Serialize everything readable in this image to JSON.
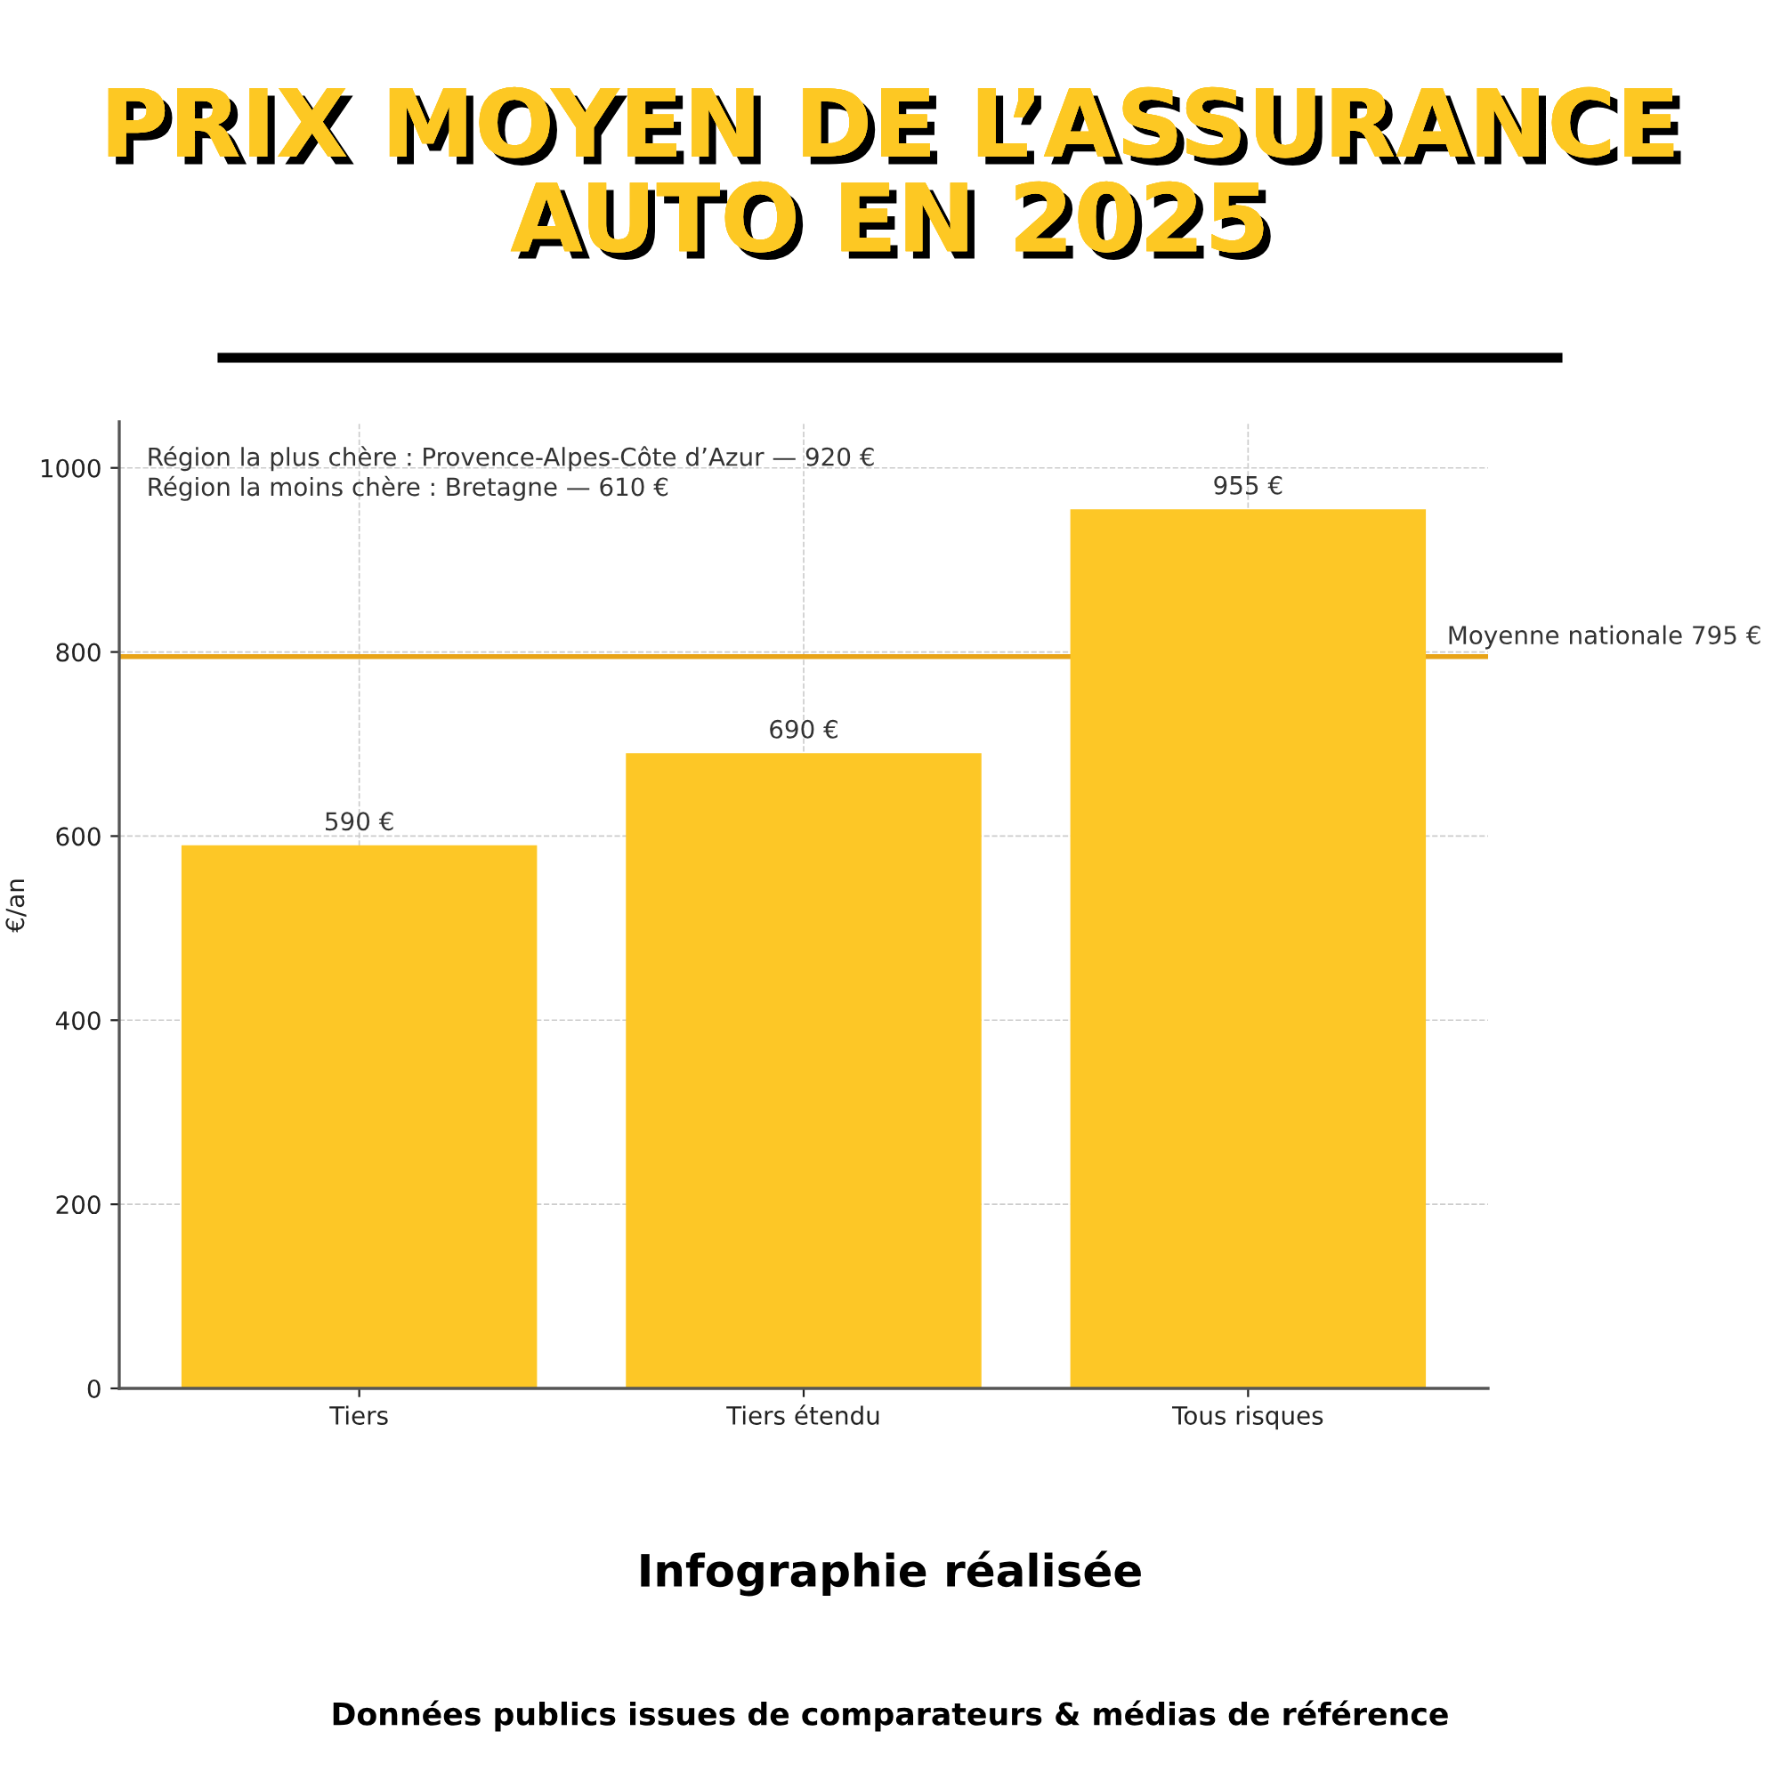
{
  "chart_data": {
    "type": "bar",
    "title": "PRIX MOYEN DE L’ASSURANCE\nAUTO EN 2025",
    "categories": [
      "Tiers",
      "Tiers étendu",
      "Tous risques"
    ],
    "values": [
      590,
      690,
      955
    ],
    "value_labels": [
      "590 €",
      "690 €",
      "955 €"
    ],
    "color": "#fdc726",
    "ylabel": "€/an",
    "ylim": [
      0,
      1050
    ],
    "yticks": [
      0,
      200,
      400,
      600,
      800,
      1000
    ],
    "grid": true,
    "ref_lines": [
      {
        "axis": "y",
        "value": 795,
        "label": "Moyenne nationale 795 €",
        "color": "#e8a317"
      }
    ],
    "annotations": [
      "Région la plus chère : Provence-Alpes-Côte d’Azur — 920 €",
      "Région la moins chère : Bretagne — 610 €",
      "Infographie réalisée",
      "Données publics issues de comparateurs & médias de référence"
    ]
  }
}
